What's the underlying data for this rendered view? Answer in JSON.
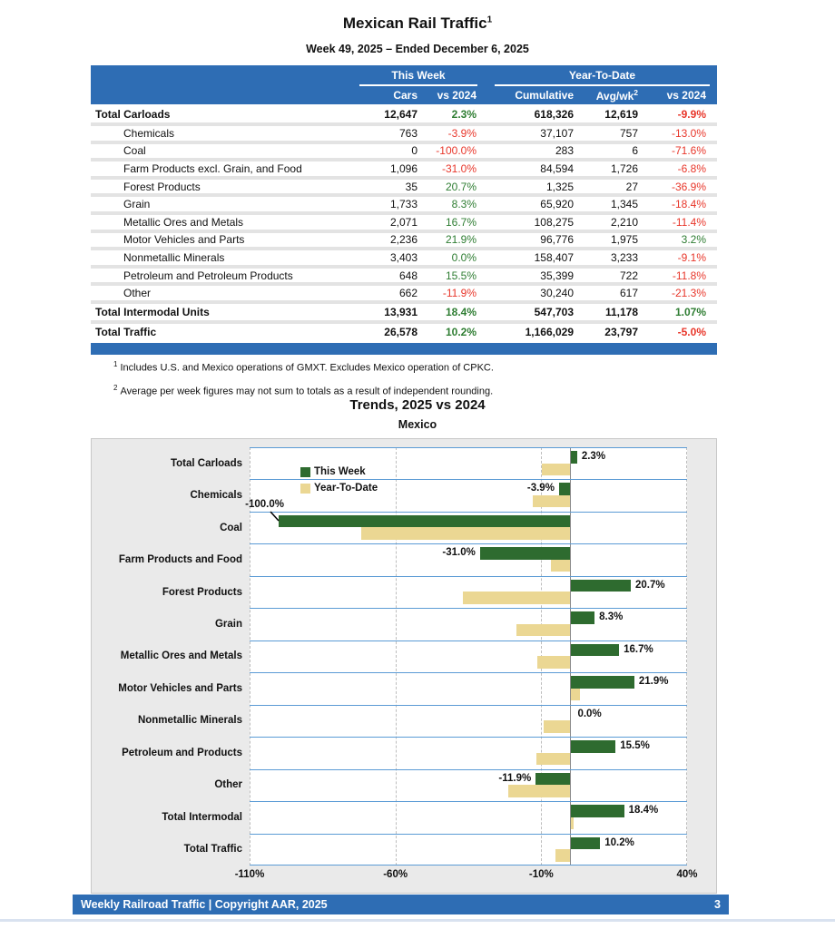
{
  "page": {
    "title": "Mexican Rail Traffic",
    "title_sup": "1",
    "subtitle": "Week 49, 2025 – Ended December 6, 2025"
  },
  "table": {
    "group_headers": {
      "this_week": "This Week",
      "ytd": "Year-To-Date"
    },
    "columns": [
      "Cars",
      "vs 2024",
      "Cumulative",
      "Avg/wk",
      "vs 2024"
    ],
    "avg_wk_sup": "2",
    "rows": [
      {
        "label": "Total Carloads",
        "type": "total",
        "cars": "12,647",
        "wk_pct": "2.3%",
        "wk_color": "pos",
        "cumulative": "618,326",
        "avg_wk": "12,619",
        "ytd_pct": "-9.9%",
        "ytd_color": "neg"
      },
      {
        "label": "Chemicals",
        "type": "sub",
        "cars": "763",
        "wk_pct": "-3.9%",
        "wk_color": "neg",
        "cumulative": "37,107",
        "avg_wk": "757",
        "ytd_pct": "-13.0%",
        "ytd_color": "neg"
      },
      {
        "label": "Coal",
        "type": "sub",
        "cars": "0",
        "wk_pct": "-100.0%",
        "wk_color": "neg",
        "cumulative": "283",
        "avg_wk": "6",
        "ytd_pct": "-71.6%",
        "ytd_color": "neg"
      },
      {
        "label": "Farm Products excl. Grain, and Food",
        "type": "sub",
        "cars": "1,096",
        "wk_pct": "-31.0%",
        "wk_color": "neg",
        "cumulative": "84,594",
        "avg_wk": "1,726",
        "ytd_pct": "-6.8%",
        "ytd_color": "neg"
      },
      {
        "label": "Forest Products",
        "type": "sub",
        "cars": "35",
        "wk_pct": "20.7%",
        "wk_color": "pos",
        "cumulative": "1,325",
        "avg_wk": "27",
        "ytd_pct": "-36.9%",
        "ytd_color": "neg"
      },
      {
        "label": "Grain",
        "type": "sub",
        "cars": "1,733",
        "wk_pct": "8.3%",
        "wk_color": "pos",
        "cumulative": "65,920",
        "avg_wk": "1,345",
        "ytd_pct": "-18.4%",
        "ytd_color": "neg"
      },
      {
        "label": "Metallic Ores and Metals",
        "type": "sub",
        "cars": "2,071",
        "wk_pct": "16.7%",
        "wk_color": "pos",
        "cumulative": "108,275",
        "avg_wk": "2,210",
        "ytd_pct": "-11.4%",
        "ytd_color": "neg"
      },
      {
        "label": "Motor Vehicles and Parts",
        "type": "sub",
        "cars": "2,236",
        "wk_pct": "21.9%",
        "wk_color": "pos",
        "cumulative": "96,776",
        "avg_wk": "1,975",
        "ytd_pct": "3.2%",
        "ytd_color": "pos"
      },
      {
        "label": "Nonmetallic Minerals",
        "type": "sub",
        "cars": "3,403",
        "wk_pct": "0.0%",
        "wk_color": "pos",
        "cumulative": "158,407",
        "avg_wk": "3,233",
        "ytd_pct": "-9.1%",
        "ytd_color": "neg"
      },
      {
        "label": "Petroleum and Petroleum Products",
        "type": "sub",
        "cars": "648",
        "wk_pct": "15.5%",
        "wk_color": "pos",
        "cumulative": "35,399",
        "avg_wk": "722",
        "ytd_pct": "-11.8%",
        "ytd_color": "neg"
      },
      {
        "label": "Other",
        "type": "sub",
        "cars": "662",
        "wk_pct": "-11.9%",
        "wk_color": "neg",
        "cumulative": "30,240",
        "avg_wk": "617",
        "ytd_pct": "-21.3%",
        "ytd_color": "neg"
      },
      {
        "label": "Total Intermodal Units",
        "type": "total",
        "cars": "13,931",
        "wk_pct": "18.4%",
        "wk_color": "pos",
        "cumulative": "547,703",
        "avg_wk": "11,178",
        "ytd_pct": "1.07%",
        "ytd_color": "pos"
      },
      {
        "label": "Total Traffic",
        "type": "total",
        "cars": "26,578",
        "wk_pct": "10.2%",
        "wk_color": "pos",
        "cumulative": "1,166,029",
        "avg_wk": "23,797",
        "ytd_pct": "-5.0%",
        "ytd_color": "neg"
      }
    ]
  },
  "footnotes": [
    {
      "sup": "1",
      "text": "Includes U.S. and Mexico operations of GMXT. Excludes Mexico operation of CPKC."
    },
    {
      "sup": "2",
      "text": "Average per week figures may not sum to totals as a result of independent rounding."
    }
  ],
  "chart": {
    "title": "Trends, 2025 vs 2024",
    "subtitle": "Mexico",
    "legend": [
      {
        "label": "This Week",
        "color": "#2E6B2F"
      },
      {
        "label": "Year-To-Date",
        "color": "#EBD793"
      }
    ],
    "callout_label": "-100.0%"
  },
  "chart_data": {
    "type": "bar",
    "orientation": "horizontal",
    "title": "Trends, 2025 vs 2024",
    "subtitle": "Mexico",
    "xlim": [
      -110,
      40
    ],
    "x_ticks": [
      -110,
      -60,
      -10,
      40
    ],
    "x_tick_labels": [
      "-110%",
      "-60%",
      "-10%",
      "40%"
    ],
    "grid": "vertical-dashed",
    "legend_position": "top-left-inside",
    "categories": [
      "Total Carloads",
      "Chemicals",
      "Coal",
      "Farm Products and Food",
      "Forest Products",
      "Grain",
      "Metallic Ores and Metals",
      "Motor Vehicles and Parts",
      "Nonmetallic Minerals",
      "Petroleum and Products",
      "Other",
      "Total Intermodal",
      "Total Traffic"
    ],
    "series": [
      {
        "name": "This Week",
        "values": [
          2.3,
          -3.9,
          -100.0,
          -31.0,
          20.7,
          8.3,
          16.7,
          21.9,
          0.0,
          15.5,
          -11.9,
          18.4,
          10.2
        ]
      },
      {
        "name": "Year-To-Date",
        "values": [
          -9.9,
          -13.0,
          -71.6,
          -6.8,
          -36.9,
          -18.4,
          -11.4,
          3.2,
          -9.1,
          -11.8,
          -21.3,
          1.07,
          -5.0
        ]
      }
    ],
    "bar_labels": [
      "2.3%",
      "-3.9%",
      "-100.0%",
      "-31.0%",
      "20.7%",
      "8.3%",
      "16.7%",
      "21.9%",
      "0.0%",
      "15.5%",
      "-11.9%",
      "18.4%",
      "10.2%"
    ],
    "callout": {
      "category": "Coal",
      "label": "-100.0%"
    }
  },
  "footer": {
    "text": "Weekly Railroad Traffic | Copyright AAR, 2025",
    "page": "3"
  }
}
